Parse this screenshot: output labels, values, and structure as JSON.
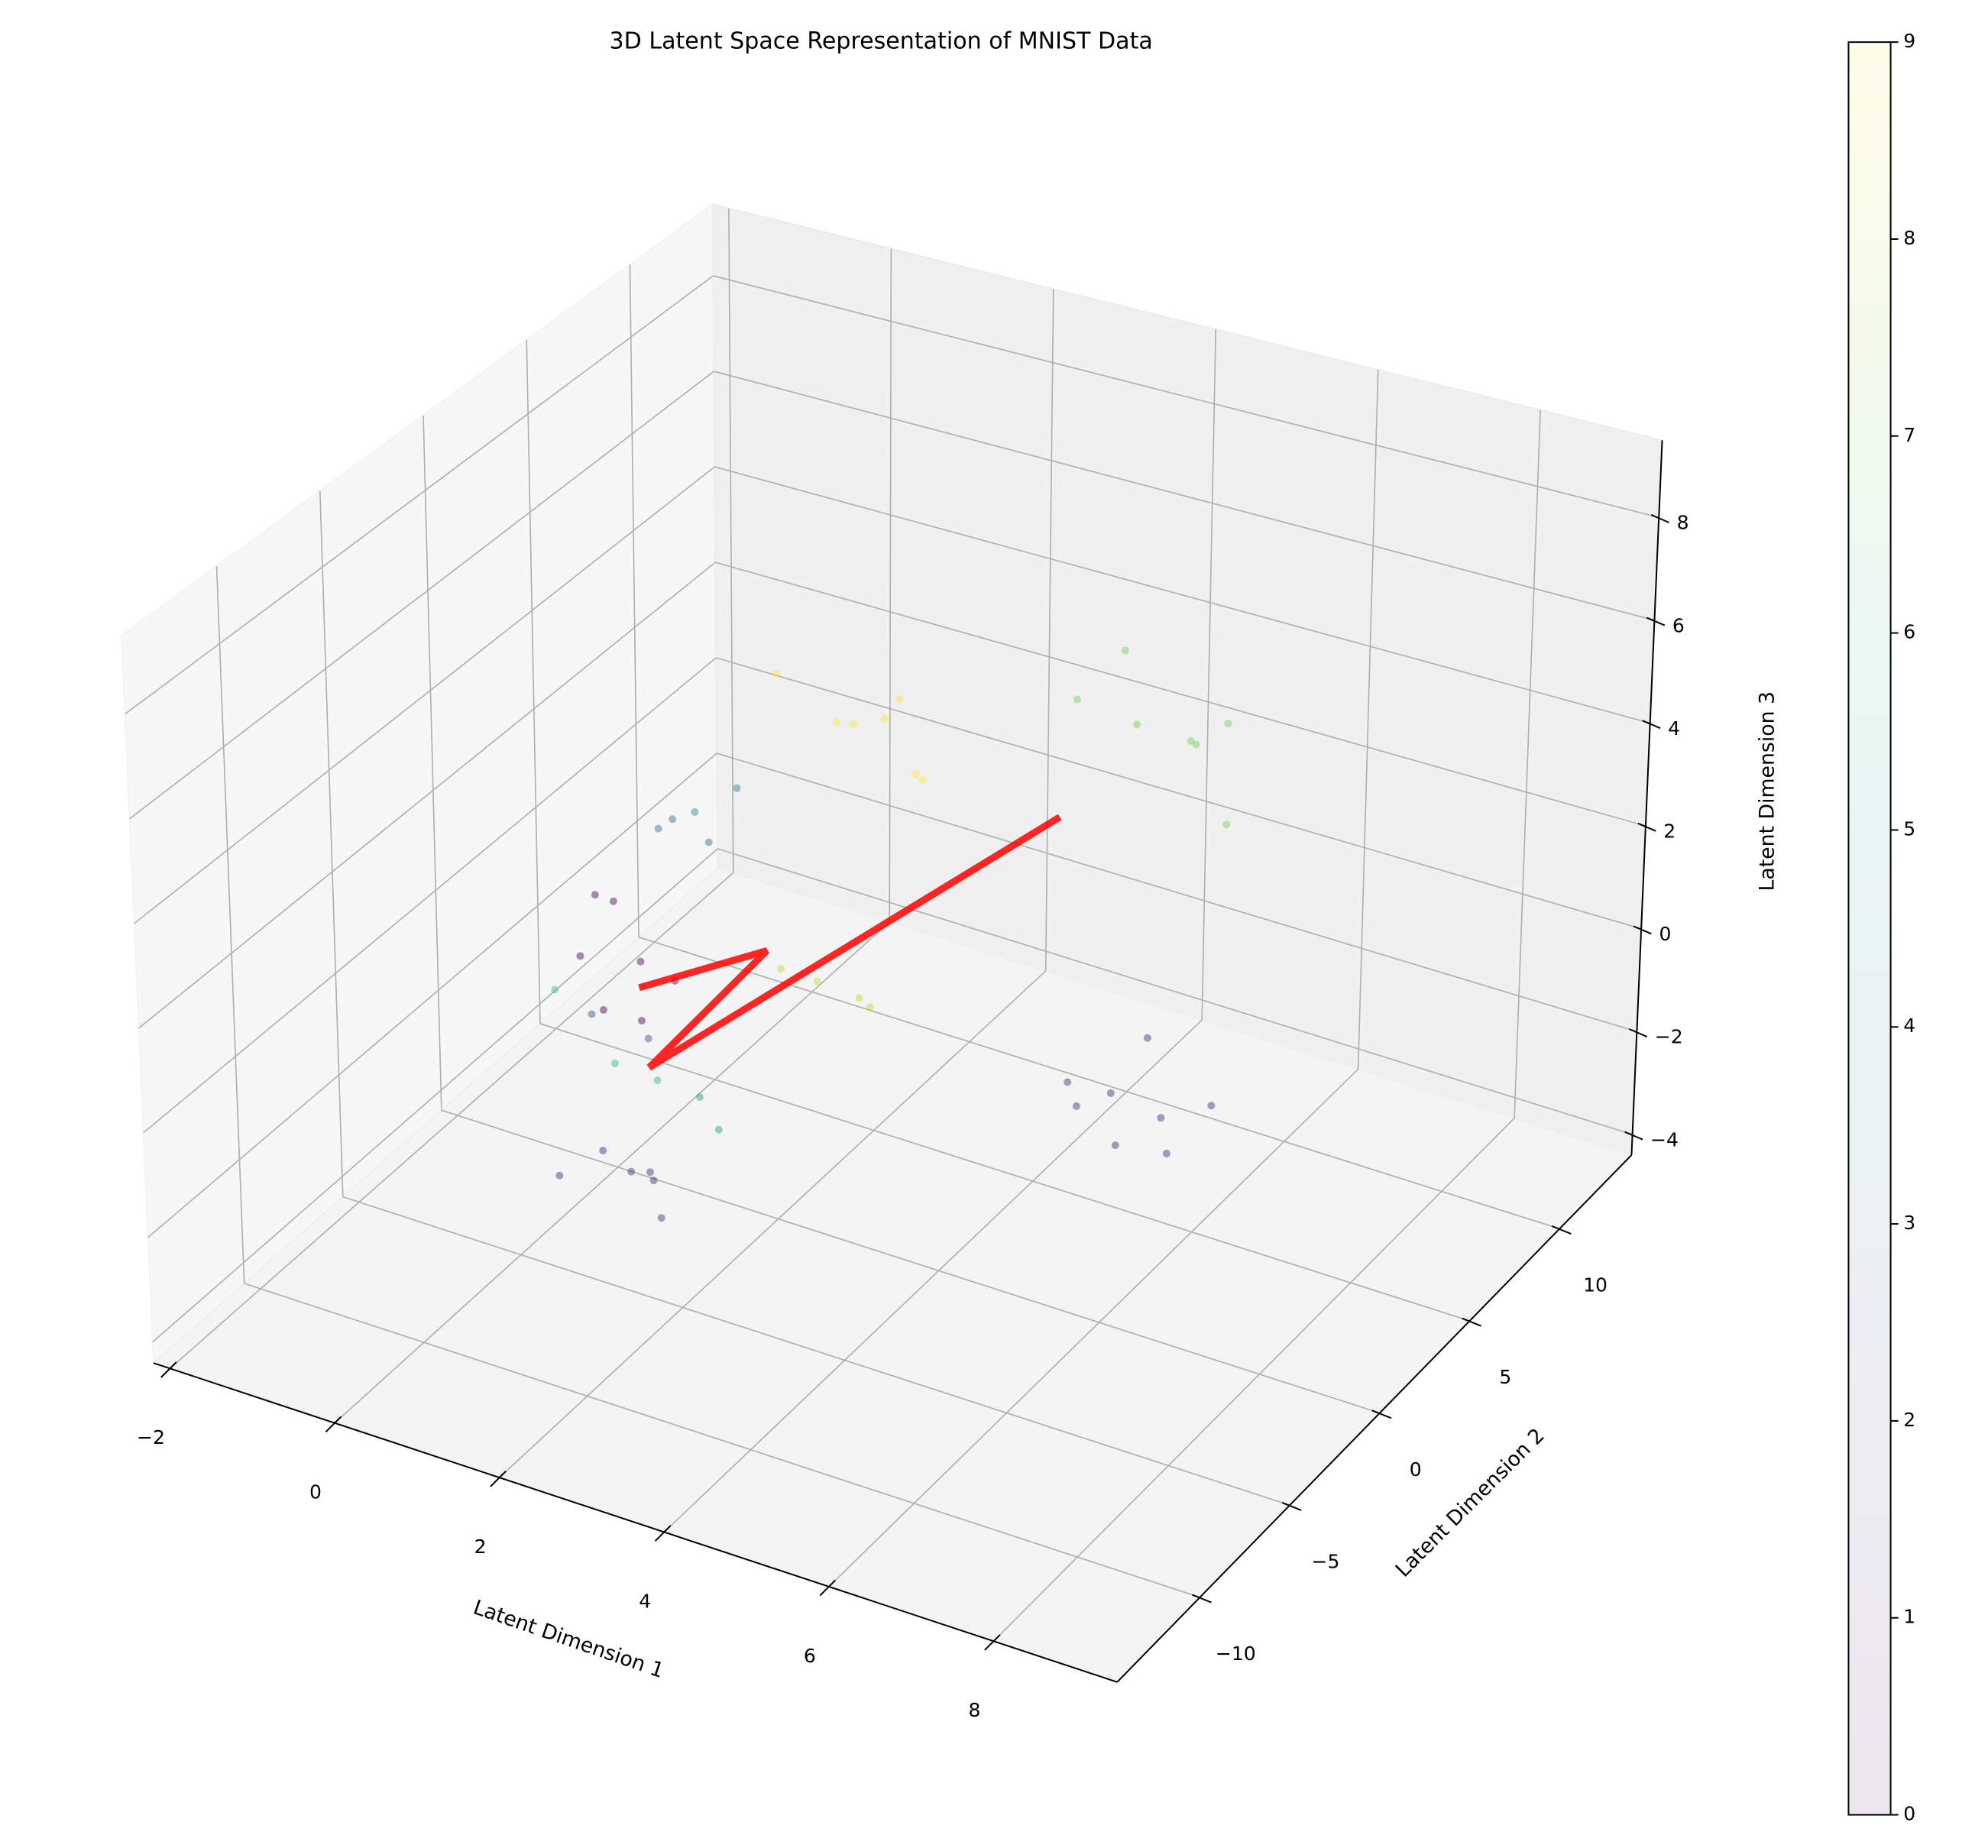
{
  "chart_data": {
    "type": "scatter3d",
    "title": "3D Latent Space Representation of MNIST Data",
    "xlabel": "Latent Dimension 1",
    "ylabel": "Latent Dimension 2",
    "zlabel": "Latent Dimension 3",
    "xlim": [
      -2.2,
      9.5
    ],
    "ylim": [
      -14.6,
      14
    ],
    "zlim": [
      -4.4,
      9.5
    ],
    "xticks": [
      {
        "value": -2,
        "label": "−2"
      },
      0,
      2,
      4,
      6,
      8
    ],
    "yticks": [
      {
        "value": -10,
        "label": "−10"
      },
      {
        "value": -5,
        "label": "−5"
      },
      0,
      5,
      10
    ],
    "zticks": [
      {
        "value": -4,
        "label": "−4"
      },
      {
        "value": -2,
        "label": "−2"
      },
      0,
      2,
      4,
      6,
      8
    ],
    "grid": true,
    "colormap": "viridis",
    "clim": [
      0,
      9
    ],
    "cticks": [
      0,
      1,
      2,
      3,
      4,
      5,
      6,
      7,
      8,
      9
    ],
    "x": [
      0.2,
      -0.3,
      0.5,
      -0.6,
      0.1,
      -0.2,
      0.4,
      0.8,
      1.3,
      0.5,
      1.5,
      0.9,
      1.8,
      6.8,
      7.3,
      6.5,
      7.6,
      6.9,
      7.8,
      6.2,
      7.2,
      0.7,
      0.2,
      2,
      2.5,
      1.6,
      2.8,
      1.3,
      2.2,
      3,
      5,
      5.5,
      4.5,
      6,
      5.2,
      4.8,
      6.3,
      1,
      1.4,
      0.6,
      1.8,
      -0.5,
      0,
      0.4,
      -0.3,
      0.8,
      0.2,
      2.5,
      2.9,
      2.2,
      3.2
    ],
    "y": [
      0.5,
      -0.5,
      1,
      1.5,
      -1,
      0.8,
      -0.3,
      -4,
      -3.5,
      -5,
      -4.5,
      -3,
      -5.2,
      -3,
      -2.5,
      -4,
      -3.5,
      -1.5,
      -2,
      -2.2,
      -4.5,
      -1.2,
      -2,
      4,
      3.5,
      4.8,
      4.2,
      3,
      5.5,
      3,
      6,
      7,
      5,
      6.5,
      8,
      6.2,
      5.2,
      -2,
      -1.5,
      -2.5,
      -2.2,
      -1,
      3,
      2.5,
      3.5,
      3,
      4,
      0,
      0.5,
      -0.6,
      -0.2
    ],
    "z": [
      -0.4,
      -0.2,
      -0.8,
      0.2,
      -0.9,
      0.5,
      -1.2,
      -2.3,
      -2.8,
      -2.6,
      -2.2,
      -3,
      -2.7,
      1.4,
      1,
      1.8,
      0.8,
      2,
      1.3,
      0.6,
      1.1,
      -1.1,
      -0.6,
      4,
      4.5,
      3.6,
      3.2,
      5,
      4.1,
      3.8,
      4.7,
      4.2,
      5.3,
      5,
      3.8,
      6,
      3.6,
      -1.5,
      -1.8,
      -1.2,
      -2,
      -0.8,
      1.5,
      2,
      1,
      2.5,
      0.8,
      0.5,
      0.2,
      0.8,
      0.4
    ],
    "c": [
      0,
      0,
      0,
      0,
      0,
      0,
      0,
      1,
      1,
      1,
      1,
      1,
      1,
      1,
      1,
      1,
      1,
      1,
      1,
      1,
      1,
      2,
      2,
      9,
      9,
      9,
      9,
      9,
      9,
      9,
      7,
      7,
      7,
      7,
      7,
      7,
      7,
      6,
      5,
      6,
      5,
      6,
      3,
      4,
      3,
      4,
      3,
      8,
      8,
      8,
      8
    ],
    "line": {
      "color": "#ff0000",
      "x": [
        0.3,
        1.4,
        0.9,
        4.3
      ],
      "y": [
        0,
        2,
        -2,
        5
      ],
      "z": [
        -0.7,
        -0.1,
        -1.3,
        2.9
      ]
    }
  }
}
